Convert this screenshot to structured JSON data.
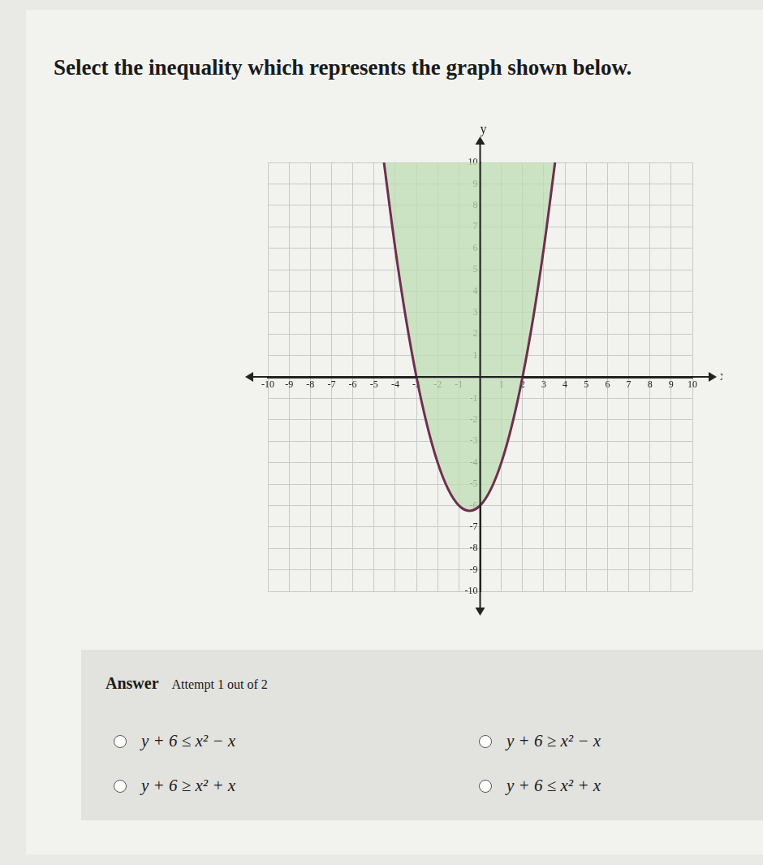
{
  "question": "Select the inequality which represents the graph shown below.",
  "chart_data": {
    "type": "area",
    "x_label": "x",
    "y_label": "y",
    "x": [
      -4.53,
      -4,
      -3.5,
      -3,
      -2.5,
      -2,
      -1.5,
      -1,
      -0.5,
      0,
      0.5,
      1,
      1.5,
      2,
      2.5,
      3,
      3.53
    ],
    "values": [
      10,
      6,
      2.75,
      0,
      -2.25,
      -4,
      -5.25,
      -6,
      -6.25,
      -6,
      -5.25,
      -4,
      -2.25,
      0,
      2.75,
      6,
      10
    ],
    "color": "#6e2f4f",
    "line_style": "solid",
    "xlim": [
      -10,
      10
    ],
    "ylim": [
      -10,
      10
    ],
    "xticks": [
      -10,
      -9,
      -8,
      -7,
      -6,
      -5,
      -4,
      -3,
      -2,
      -1,
      1,
      2,
      3,
      4,
      5,
      6,
      7,
      8,
      9,
      10
    ],
    "yticks": [
      -10,
      -9,
      -8,
      -7,
      -6,
      -5,
      -4,
      -3,
      -2,
      -1,
      1,
      2,
      3,
      4,
      5,
      6,
      7,
      8,
      9,
      10
    ],
    "grid": true
  },
  "answer": {
    "label": "Answer",
    "attempt": "Attempt 1 out of 2",
    "options": [
      "y + 6 ≤ x² − x",
      "y + 6 ≥ x² − x",
      "y + 6 ≥ x² + x",
      "y + 6 ≤ x² + x"
    ]
  }
}
